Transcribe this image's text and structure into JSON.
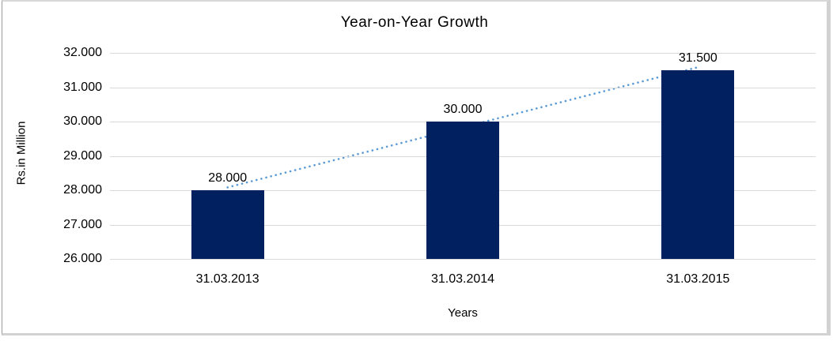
{
  "chart_data": {
    "type": "bar",
    "title": "Year-on-Year Growth",
    "xlabel": "Years",
    "ylabel": "Rs.in Million",
    "categories": [
      "31.03.2013",
      "31.03.2014",
      "31.03.2015"
    ],
    "values": [
      28000,
      30000,
      31500
    ],
    "data_labels": [
      "28.000",
      "30.000",
      "31.500"
    ],
    "y_ticks": [
      "32.000",
      "31.000",
      "30.000",
      "29.000",
      "28.000",
      "27.000",
      "26.000"
    ],
    "ylim": [
      26000,
      32000
    ],
    "grid": true,
    "legend": "none",
    "bar_color": "#002060",
    "gridline_color": "#d9d9d9",
    "trendline": {
      "style": "dotted",
      "color": "#5b9bd5",
      "from_value": 28083,
      "to_value": 31583
    }
  }
}
